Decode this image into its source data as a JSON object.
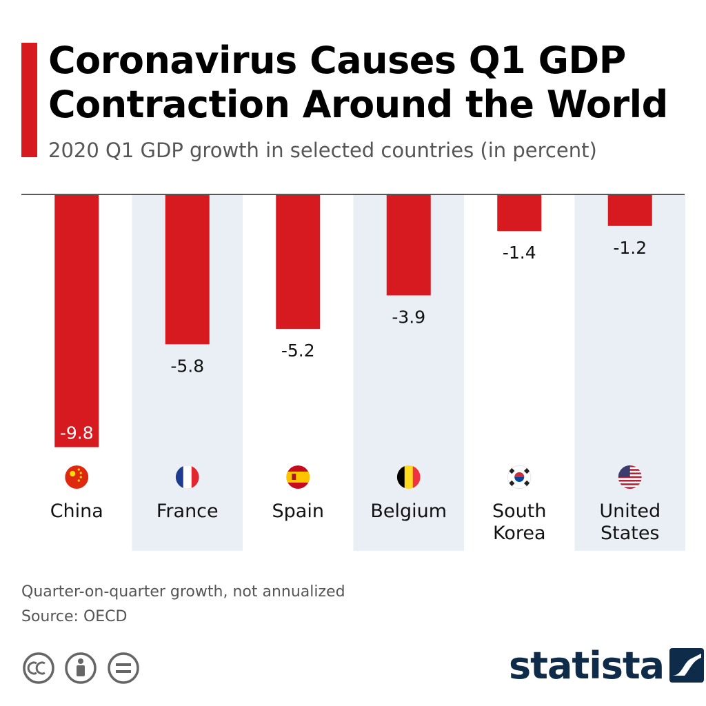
{
  "header": {
    "title_line1": "Coronavirus Causes Q1 GDP",
    "title_line2": "Contraction Around the World",
    "subtitle": "2020 Q1 GDP growth in selected countries (in percent)"
  },
  "chart_data": {
    "type": "bar",
    "title": "Coronavirus Causes Q1 GDP Contraction Around the World",
    "subtitle": "2020 Q1 GDP growth in selected countries (in percent)",
    "categories": [
      {
        "label_lines": [
          "China"
        ],
        "flag": "china-flag"
      },
      {
        "label_lines": [
          "France"
        ],
        "flag": "france-flag"
      },
      {
        "label_lines": [
          "Spain"
        ],
        "flag": "spain-flag"
      },
      {
        "label_lines": [
          "Belgium"
        ],
        "flag": "belgium-flag"
      },
      {
        "label_lines": [
          "South",
          "Korea"
        ],
        "flag": "south-korea-flag"
      },
      {
        "label_lines": [
          "United",
          "States"
        ],
        "flag": "united-states-flag"
      }
    ],
    "values": [
      -9.8,
      -5.8,
      -5.2,
      -3.9,
      -1.4,
      -1.2
    ],
    "value_labels": [
      "-9.8",
      "-5.8",
      "-5.2",
      "-3.9",
      "-1.4",
      "-1.2"
    ],
    "ylim": [
      -10,
      0
    ],
    "bar_color": "#d71920",
    "band_color": "#eaeff5",
    "grid": false,
    "xlabel": "",
    "ylabel": ""
  },
  "footer": {
    "note": "Quarter-on-quarter growth, not annualized",
    "source": "Source: OECD",
    "license_icons": [
      "cc-icon",
      "attribution-icon",
      "no-derivatives-icon"
    ],
    "brand": "statista"
  }
}
